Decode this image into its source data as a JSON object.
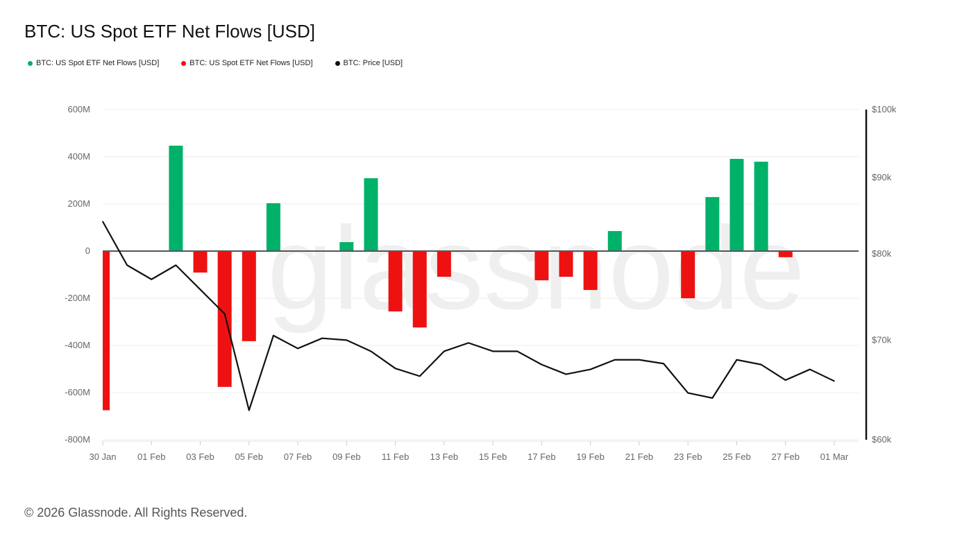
{
  "title": "BTC: US Spot ETF Net Flows [USD]",
  "footer": "© 2026 Glassnode. All Rights Reserved.",
  "watermark": "glassnode",
  "legend": [
    {
      "label": "BTC: US Spot ETF Net Flows [USD]",
      "color": "#00b16a"
    },
    {
      "label": "BTC: US Spot ETF Net Flows [USD]",
      "color": "#ee1111"
    },
    {
      "label": "BTC: Price [USD]",
      "color": "#111111"
    }
  ],
  "chart_data": {
    "type": "bar",
    "title": "BTC: US Spot ETF Net Flows [USD]",
    "x_tick_labels": [
      "30 Jan",
      "01 Feb",
      "03 Feb",
      "05 Feb",
      "07 Feb",
      "09 Feb",
      "11 Feb",
      "13 Feb",
      "15 Feb",
      "17 Feb",
      "19 Feb",
      "21 Feb",
      "23 Feb",
      "25 Feb",
      "27 Feb",
      "01 Mar"
    ],
    "dates": [
      "30 Jan",
      "31 Jan",
      "01 Feb",
      "02 Feb",
      "03 Feb",
      "04 Feb",
      "05 Feb",
      "06 Feb",
      "07 Feb",
      "08 Feb",
      "09 Feb",
      "10 Feb",
      "11 Feb",
      "12 Feb",
      "13 Feb",
      "14 Feb",
      "15 Feb",
      "16 Feb",
      "17 Feb",
      "18 Feb",
      "19 Feb",
      "20 Feb",
      "21 Feb",
      "22 Feb",
      "23 Feb",
      "24 Feb",
      "25 Feb",
      "26 Feb",
      "27 Feb",
      "28 Feb",
      "01 Mar"
    ],
    "left_axis": {
      "ylim": [
        -800,
        600
      ],
      "unit": "M",
      "ticks": [
        "600M",
        "400M",
        "200M",
        "0",
        "-200M",
        "-400M",
        "-600M",
        "-800M"
      ],
      "tick_values": [
        600,
        400,
        200,
        0,
        -200,
        -400,
        -600,
        -800
      ]
    },
    "right_axis": {
      "scale": "log",
      "ylim": [
        60000,
        100000
      ],
      "ticks": [
        "$100k",
        "$90k",
        "$80k",
        "$70k",
        "$60k"
      ],
      "tick_values": [
        100000,
        90000,
        80000,
        70000,
        60000
      ]
    },
    "series": [
      {
        "name": "BTC: US Spot ETF Net Flows [USD]",
        "type": "bar",
        "unit": "M USD",
        "positive_color": "#00b16a",
        "negative_color": "#ee1111",
        "values": [
          -675,
          null,
          null,
          447,
          -91,
          -576,
          -382,
          203,
          null,
          null,
          38,
          309,
          -256,
          -324,
          -109,
          null,
          null,
          null,
          -124,
          -109,
          -165,
          85,
          null,
          null,
          -200,
          229,
          391,
          379,
          -26,
          null,
          null
        ]
      },
      {
        "name": "BTC: Price [USD]",
        "type": "line",
        "color": "#111111",
        "values": [
          84100,
          78600,
          76900,
          78600,
          75700,
          72900,
          62800,
          70500,
          69100,
          70200,
          70000,
          68800,
          67000,
          66200,
          68800,
          69700,
          68800,
          68800,
          67400,
          66400,
          66900,
          67900,
          67900,
          67500,
          64500,
          64000,
          67900,
          67400,
          65800,
          66900,
          65700
        ]
      }
    ]
  }
}
